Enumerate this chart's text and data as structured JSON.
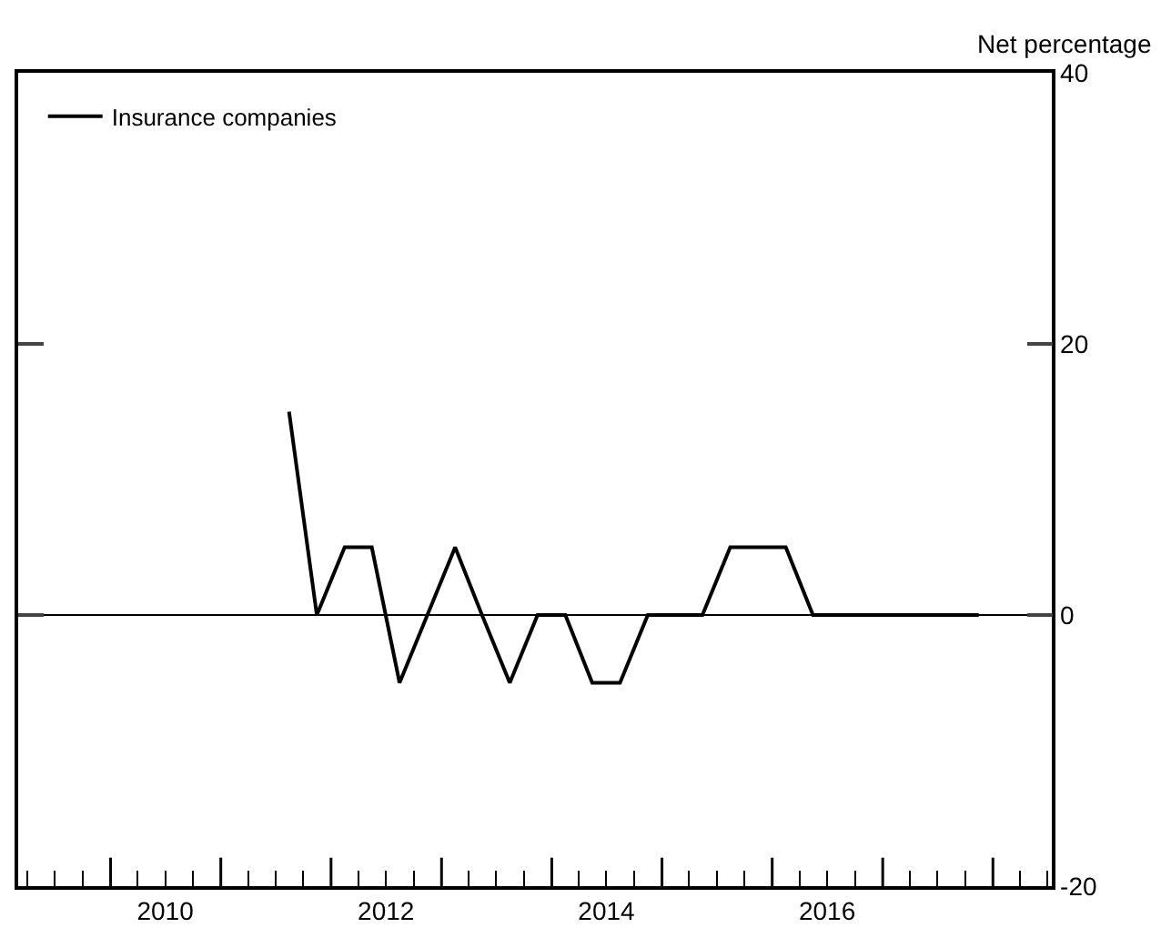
{
  "chart_data": {
    "type": "line",
    "ylabel": "Net percentage",
    "x": [
      "2011-08-15",
      "2011-11-15",
      "2012-02-15",
      "2012-05-15",
      "2012-08-15",
      "2012-11-15",
      "2013-02-15",
      "2013-05-15",
      "2013-08-15",
      "2013-11-15",
      "2014-02-15",
      "2014-05-15",
      "2014-08-15",
      "2014-11-15",
      "2015-02-15",
      "2015-05-15",
      "2015-08-15",
      "2015-11-15",
      "2016-02-15",
      "2016-05-15",
      "2016-08-15",
      "2016-11-15",
      "2017-02-15",
      "2017-05-15",
      "2017-08-15",
      "2017-11-15"
    ],
    "series": [
      {
        "name": "Insurance companies",
        "color": "#000000",
        "values": [
          15,
          0,
          5,
          5,
          -5,
          0,
          5,
          0,
          -5,
          0,
          0,
          -5,
          -5,
          0,
          0,
          0,
          5,
          5,
          5,
          0,
          0,
          0,
          0,
          0,
          0,
          0
        ]
      }
    ],
    "xlim": [
      "2009-03-01",
      "2018-07-15"
    ],
    "xticks": [
      {
        "value": "2010-07-01",
        "label": "2010"
      },
      {
        "value": "2012-07-01",
        "label": "2012"
      },
      {
        "value": "2014-07-01",
        "label": "2014"
      },
      {
        "value": "2016-07-01",
        "label": "2016"
      },
      {
        "value": "2010-01-01",
        "label": null
      },
      {
        "value": "2011-01-01",
        "label": null
      },
      {
        "value": "2012-01-01",
        "label": null
      },
      {
        "value": "2013-01-01",
        "label": null
      },
      {
        "value": "2014-01-01",
        "label": null
      },
      {
        "value": "2015-01-01",
        "label": null
      },
      {
        "value": "2016-01-01",
        "label": null
      },
      {
        "value": "2017-01-01",
        "label": null
      },
      {
        "value": "2018-01-01",
        "label": null
      }
    ],
    "ylim": [
      -20,
      40
    ],
    "yticks": [
      -20,
      0,
      20,
      40
    ],
    "ref_lines": [
      {
        "axis": "y",
        "value": 0,
        "color": "#000000"
      }
    ],
    "grid": false,
    "legend": "top left",
    "marker": "none",
    "line_style": "solid"
  }
}
